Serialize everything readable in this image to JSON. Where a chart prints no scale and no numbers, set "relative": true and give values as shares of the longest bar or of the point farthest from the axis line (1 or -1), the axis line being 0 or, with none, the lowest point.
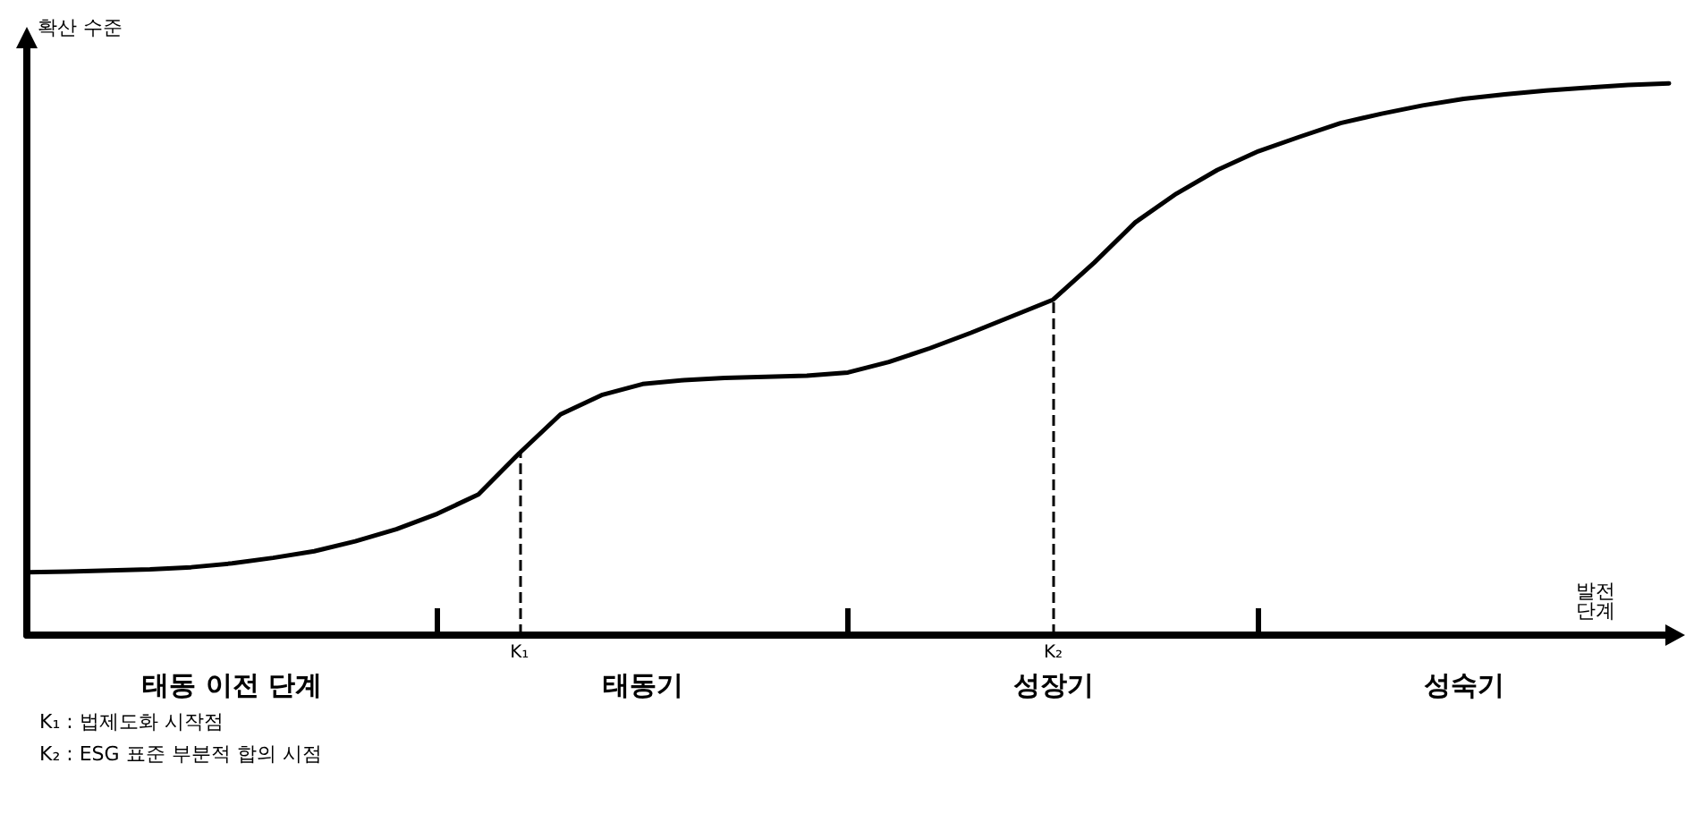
{
  "chart_data": {
    "type": "line",
    "relative": true,
    "ylabel": "확산 수준",
    "xlabel": "발전\n단계",
    "categories": [
      null,
      null,
      null,
      null,
      null,
      null,
      null,
      null,
      null,
      null,
      null,
      null,
      "K₁",
      null,
      null,
      null,
      null,
      null,
      null,
      null,
      null,
      null,
      null,
      null,
      null,
      "K₂",
      null,
      null,
      null,
      null,
      null,
      null,
      null,
      null,
      null,
      null,
      null,
      null,
      null,
      null,
      null
    ],
    "values": [
      0.114,
      0.115,
      0.117,
      0.119,
      0.123,
      0.13,
      0.14,
      0.152,
      0.17,
      0.192,
      0.22,
      0.255,
      0.33,
      0.4,
      0.435,
      0.455,
      0.462,
      0.466,
      0.468,
      0.47,
      0.476,
      0.495,
      0.52,
      0.548,
      0.578,
      0.608,
      0.675,
      0.748,
      0.8,
      0.843,
      0.877,
      0.903,
      0.928,
      0.945,
      0.96,
      0.972,
      0.98,
      0.987,
      0.992,
      0.997,
      1
    ],
    "color": "#000000",
    "grid": false,
    "marker": "none",
    "line_style": "solid",
    "ref_lines": [
      {
        "axis": "x",
        "value": "K₁",
        "line_style": "dashed",
        "color": "#000000"
      },
      {
        "axis": "x",
        "value": "K₂",
        "line_style": "dashed",
        "color": "#000000"
      }
    ],
    "annotations": [
      "태동 이전 단계",
      "태동기",
      "성장기",
      "성숙기",
      "K₁ : 법제도화 시작점",
      "K₂ : ESG 표준 부분적 합의 시점"
    ]
  }
}
